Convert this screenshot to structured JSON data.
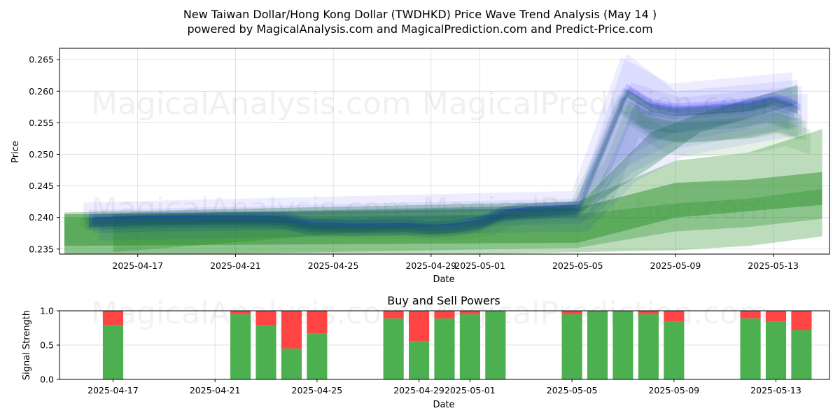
{
  "header": {
    "title": "New Taiwan Dollar/Hong Kong Dollar (TWDHKD) Price Wave Trend Analysis (May 14 )",
    "subtitle": "powered by MagicalAnalysis.com and MagicalPrediction.com and Predict-Price.com"
  },
  "watermarks": [
    "MagicalAnalysis.com",
    "MagicalPrediction.com"
  ],
  "chart_data": [
    {
      "type": "area",
      "xlabel": "Date",
      "ylabel": "Price",
      "ylim": [
        0.2342,
        0.2668
      ],
      "xlim": [
        "2025-04-14",
        "2025-05-15"
      ],
      "grid": true,
      "x_ticks": [
        "2025-04-17",
        "2025-04-21",
        "2025-04-25",
        "2025-04-29",
        "2025-05-01",
        "2025-05-05",
        "2025-05-09",
        "2025-05-13"
      ],
      "y_ticks": [
        0.235,
        0.24,
        0.245,
        0.25,
        0.255,
        0.26,
        0.265
      ],
      "colors": {
        "actual": "#0000ff",
        "forecast": "#228b22"
      },
      "actual_price": {
        "x": [
          "2025-04-15",
          "2025-04-17",
          "2025-04-19",
          "2025-04-21",
          "2025-04-23",
          "2025-04-24",
          "2025-04-26",
          "2025-04-28",
          "2025-04-29",
          "2025-04-30",
          "2025-05-01",
          "2025-05-02",
          "2025-05-03",
          "2025-05-04",
          "2025-05-05",
          "2025-05-06",
          "2025-05-07",
          "2025-05-08",
          "2025-05-09",
          "2025-05-10",
          "2025-05-11",
          "2025-05-12",
          "2025-05-13",
          "2025-05-14"
        ],
        "y": [
          0.2395,
          0.2398,
          0.2399,
          0.2399,
          0.2398,
          0.2388,
          0.2386,
          0.2387,
          0.2384,
          0.2386,
          0.2392,
          0.2408,
          0.2412,
          0.2414,
          0.2416,
          0.2508,
          0.2602,
          0.2578,
          0.2571,
          0.2573,
          0.2576,
          0.2579,
          0.2588,
          0.2575
        ]
      },
      "forecast_bands": [
        {
          "x": [
            "2025-04-14",
            "2025-05-05",
            "2025-05-09",
            "2025-05-12",
            "2025-05-15"
          ],
          "y_low": [
            0.2338,
            0.2352,
            0.2378,
            0.2385,
            0.2398
          ],
          "y_high": [
            0.24,
            0.2405,
            0.2422,
            0.243,
            0.2445
          ]
        },
        {
          "x": [
            "2025-04-14",
            "2025-05-05",
            "2025-05-09",
            "2025-05-12",
            "2025-05-15"
          ],
          "y_low": [
            0.2355,
            0.236,
            0.24,
            0.241,
            0.242
          ],
          "y_high": [
            0.2405,
            0.2415,
            0.2455,
            0.246,
            0.2472
          ]
        },
        {
          "x": [
            "2025-04-14",
            "2025-05-05",
            "2025-05-09",
            "2025-05-12",
            "2025-05-15"
          ],
          "y_low": [
            0.233,
            0.2345,
            0.2348,
            0.2355,
            0.237
          ],
          "y_high": [
            0.2408,
            0.2425,
            0.249,
            0.2503,
            0.254
          ]
        },
        {
          "x": [
            "2025-04-16",
            "2025-05-05",
            "2025-05-08",
            "2025-05-10",
            "2025-05-14"
          ],
          "y_low": [
            0.2345,
            0.2405,
            0.248,
            0.2535,
            0.258
          ],
          "y_high": [
            0.2405,
            0.242,
            0.2535,
            0.2565,
            0.261
          ]
        }
      ],
      "forecast_fans": [
        {
          "x": [
            "2025-04-15",
            "2025-05-05",
            "2025-05-07",
            "2025-05-09",
            "2025-05-14"
          ],
          "y_low": [
            0.2385,
            0.24,
            0.248,
            0.252,
            0.2555
          ],
          "y_high": [
            0.2412,
            0.243,
            0.266,
            0.26,
            0.2618
          ]
        }
      ]
    },
    {
      "type": "bar",
      "title": "Buy and Sell Powers",
      "xlabel": "Date",
      "ylabel": "Signal Strength",
      "ylim": [
        0.0,
        1.0
      ],
      "y_ticks": [
        0.0,
        0.5,
        1.0
      ],
      "x_ticks": [
        "2025-04-17",
        "2025-04-21",
        "2025-04-25",
        "2025-04-29",
        "2025-05-01",
        "2025-05-05",
        "2025-05-09",
        "2025-05-13"
      ],
      "colors": {
        "buy": "#4caf50",
        "sell": "#ff4444"
      },
      "x": [
        "2025-04-17",
        "2025-04-22",
        "2025-04-23",
        "2025-04-24",
        "2025-04-25",
        "2025-04-28",
        "2025-04-29",
        "2025-04-30",
        "2025-05-01",
        "2025-05-02",
        "2025-05-05",
        "2025-05-06",
        "2025-05-07",
        "2025-05-08",
        "2025-05-09",
        "2025-05-12",
        "2025-05-13",
        "2025-05-14"
      ],
      "buy": [
        0.79,
        0.95,
        0.79,
        0.45,
        0.67,
        0.89,
        0.56,
        0.89,
        0.95,
        1.0,
        0.95,
        1.0,
        1.0,
        0.95,
        0.84,
        0.89,
        0.84,
        0.72
      ]
    }
  ]
}
